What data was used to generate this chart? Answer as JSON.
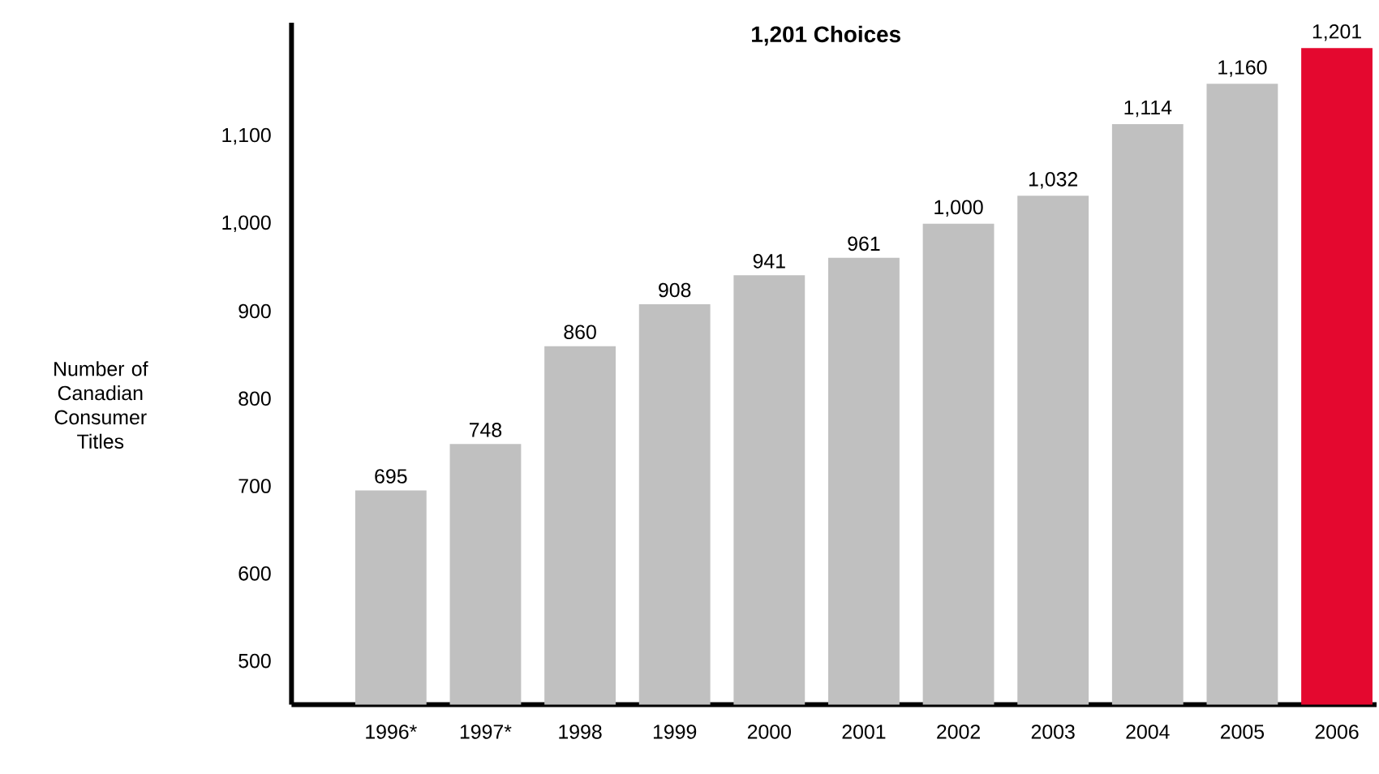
{
  "chart_data": {
    "type": "bar",
    "title": "1,201 Choices",
    "ylabel": "Number of Canadian Consumer Titles",
    "categories": [
      "1996*",
      "1997*",
      "1998",
      "1999",
      "2000",
      "2001",
      "2002",
      "2003",
      "2004",
      "2005",
      "2006"
    ],
    "values": [
      695,
      748,
      860,
      908,
      941,
      961,
      1000,
      1032,
      1114,
      1160,
      1201
    ],
    "value_labels": [
      "695",
      "748",
      "860",
      "908",
      "941",
      "961",
      "1,000",
      "1,032",
      "1,114",
      "1,160",
      "1,201"
    ],
    "colors": [
      "#c0c0c0",
      "#c0c0c0",
      "#c0c0c0",
      "#c0c0c0",
      "#c0c0c0",
      "#c0c0c0",
      "#c0c0c0",
      "#c0c0c0",
      "#c0c0c0",
      "#c0c0c0",
      "#e4082f"
    ],
    "ylim": [
      450,
      1230
    ],
    "yticks": [
      {
        "value": 500,
        "label": "500"
      },
      {
        "value": 600,
        "label": "600"
      },
      {
        "value": 700,
        "label": "700"
      },
      {
        "value": 800,
        "label": "800"
      },
      {
        "value": 900,
        "label": "900"
      },
      {
        "value": 1000,
        "label": "1,000"
      },
      {
        "value": 1100,
        "label": "1,100"
      }
    ],
    "grid": false
  }
}
